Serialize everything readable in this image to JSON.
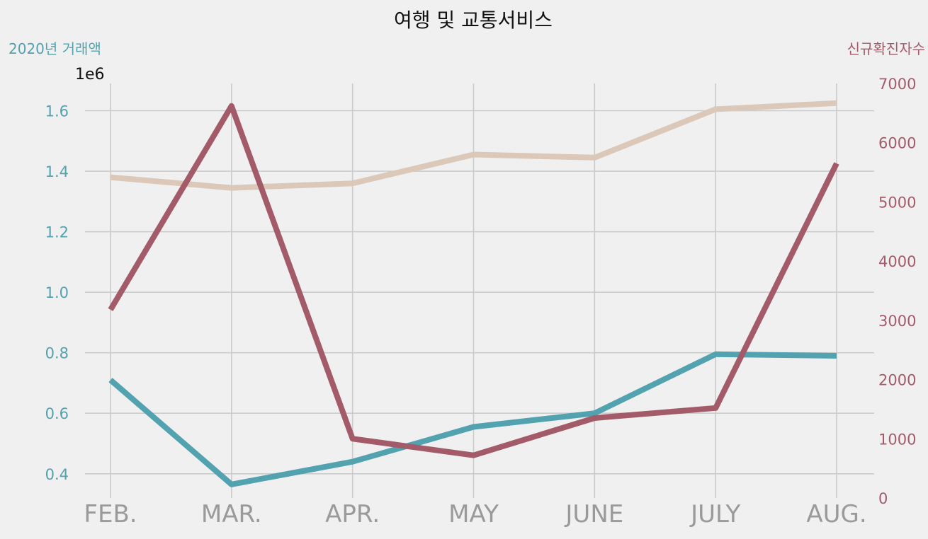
{
  "chart_data": {
    "type": "line",
    "title": "여행 및 교통서비스",
    "categories": [
      "FEB.",
      "MAR.",
      "APR.",
      "MAY",
      "JUNE",
      "JULY",
      "AUG."
    ],
    "y_left": {
      "label": "2020년 거래액",
      "offset_label": "1e6",
      "ylim": [
        0.32,
        1.69
      ],
      "ticks": [
        0.4,
        0.6,
        0.8,
        1.0,
        1.2,
        1.4,
        1.6
      ],
      "tick_labels": [
        "0.4",
        "0.6",
        "0.8",
        "1.0",
        "1.2",
        "1.4",
        "1.6"
      ]
    },
    "y_right": {
      "label": "신규확진자수",
      "ylim": [
        0,
        7000
      ],
      "ticks": [
        0,
        1000,
        2000,
        3000,
        4000,
        5000,
        6000,
        7000
      ],
      "tick_labels": [
        "0",
        "1000",
        "2000",
        "3000",
        "4000",
        "5000",
        "6000",
        "7000"
      ]
    },
    "grid": true,
    "series": [
      {
        "axis": "left",
        "color": "#dbc8b8",
        "values": [
          1.38,
          1.345,
          1.36,
          1.455,
          1.445,
          1.605,
          1.625
        ]
      },
      {
        "axis": "left",
        "color": "#52a2b0",
        "values": [
          0.71,
          0.365,
          0.44,
          0.555,
          0.6,
          0.795,
          0.79
        ]
      },
      {
        "axis": "right",
        "color": "#a35b6a",
        "values": [
          3180,
          6620,
          1000,
          720,
          1350,
          1520,
          5650
        ]
      }
    ],
    "colors": {
      "left_axis": "#52a2b0",
      "right_axis": "#a35b6a",
      "grid": "#cbcbcb",
      "xtick": "#9a9a9a",
      "background": "#f0f0f0"
    }
  }
}
